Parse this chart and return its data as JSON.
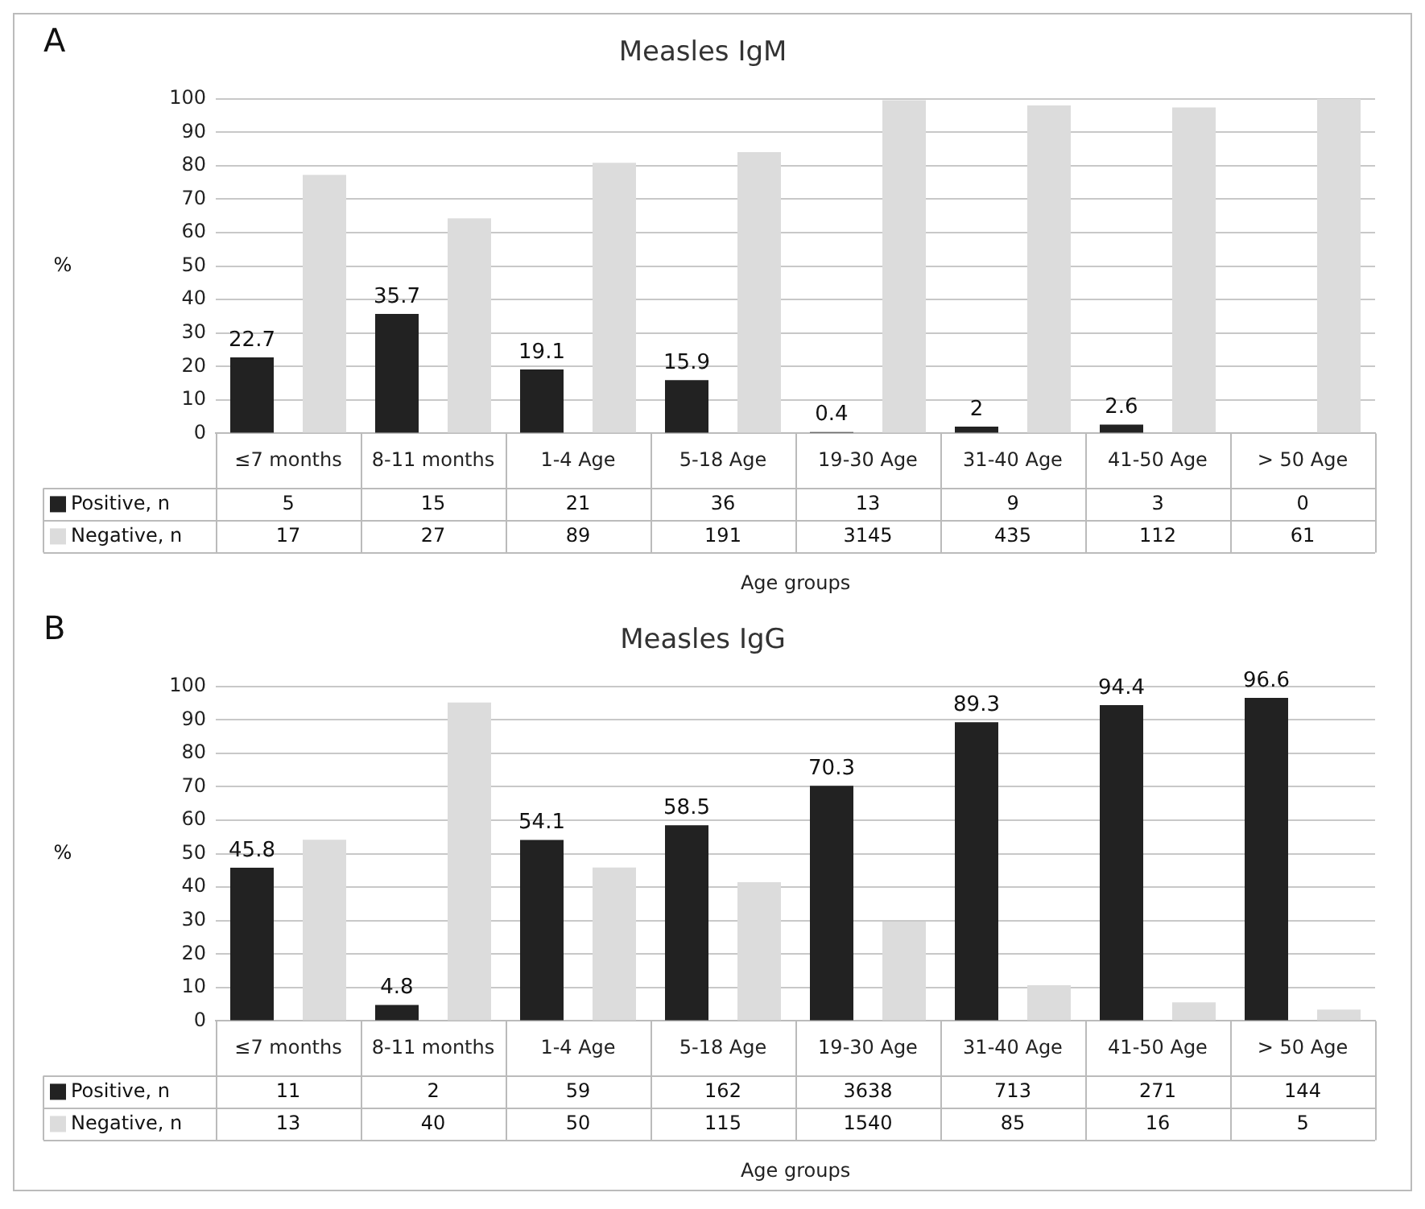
{
  "chart_data": [
    {
      "type": "bar",
      "title": "Measles IgM",
      "ylabel": "%",
      "xlabel": "Age groups",
      "categories": [
        "≤7 months",
        "8-11 months",
        "1-4 Age",
        "5-18 Age",
        "19-30 Age",
        "31-40 Age",
        "41-50 Age",
        "> 50 Age"
      ],
      "series": [
        {
          "name": "Positive, n",
          "color": "#222222",
          "values": [
            22.7,
            35.7,
            19.1,
            15.9,
            0.4,
            2,
            2.6,
            0
          ],
          "value_labels": [
            "22.7",
            "35.7",
            "19.1",
            "15.9",
            "0.4",
            "2",
            "2.6",
            null
          ]
        },
        {
          "name": "Negative, n",
          "color": "#dcdcdc",
          "values": [
            77.3,
            64.3,
            80.9,
            84.1,
            99.6,
            98,
            97.4,
            100
          ]
        }
      ],
      "ylim": [
        0,
        100
      ],
      "yticks": [
        0,
        10,
        20,
        30,
        40,
        50,
        60,
        70,
        80,
        90,
        100
      ],
      "grid": "y",
      "legend": "bottom left",
      "annotations": [
        "A",
        "5",
        "15",
        "21",
        "36",
        "13",
        "9",
        "3",
        "0",
        "17",
        "27",
        "89",
        "191",
        "3145",
        "435",
        "112",
        "61"
      ]
    },
    {
      "type": "bar",
      "title": "Measles IgG",
      "ylabel": "%",
      "xlabel": "Age groups",
      "categories": [
        "≤7 months",
        "8-11 months",
        "1-4 Age",
        "5-18 Age",
        "19-30 Age",
        "31-40 Age",
        "41-50 Age",
        "> 50 Age"
      ],
      "series": [
        {
          "name": "Positive, n",
          "color": "#222222",
          "values": [
            45.8,
            4.8,
            54.1,
            58.5,
            70.3,
            89.3,
            94.4,
            96.6
          ],
          "value_labels": [
            "45.8",
            "4.8",
            "54.1",
            "58.5",
            "70.3",
            "89.3",
            "94.4",
            "96.6"
          ]
        },
        {
          "name": "Negative, n",
          "color": "#dcdcdc",
          "values": [
            54.2,
            95.2,
            45.9,
            41.5,
            29.7,
            10.7,
            5.6,
            3.4
          ]
        }
      ],
      "ylim": [
        0,
        100
      ],
      "yticks": [
        0,
        10,
        20,
        30,
        40,
        50,
        60,
        70,
        80,
        90,
        100
      ],
      "grid": "y",
      "legend": "bottom left",
      "annotations": [
        "B",
        "11",
        "2",
        "59",
        "162",
        "3638",
        "713",
        "271",
        "144",
        "13",
        "40",
        "50",
        "115",
        "1540",
        "85",
        "16",
        "5"
      ]
    }
  ]
}
